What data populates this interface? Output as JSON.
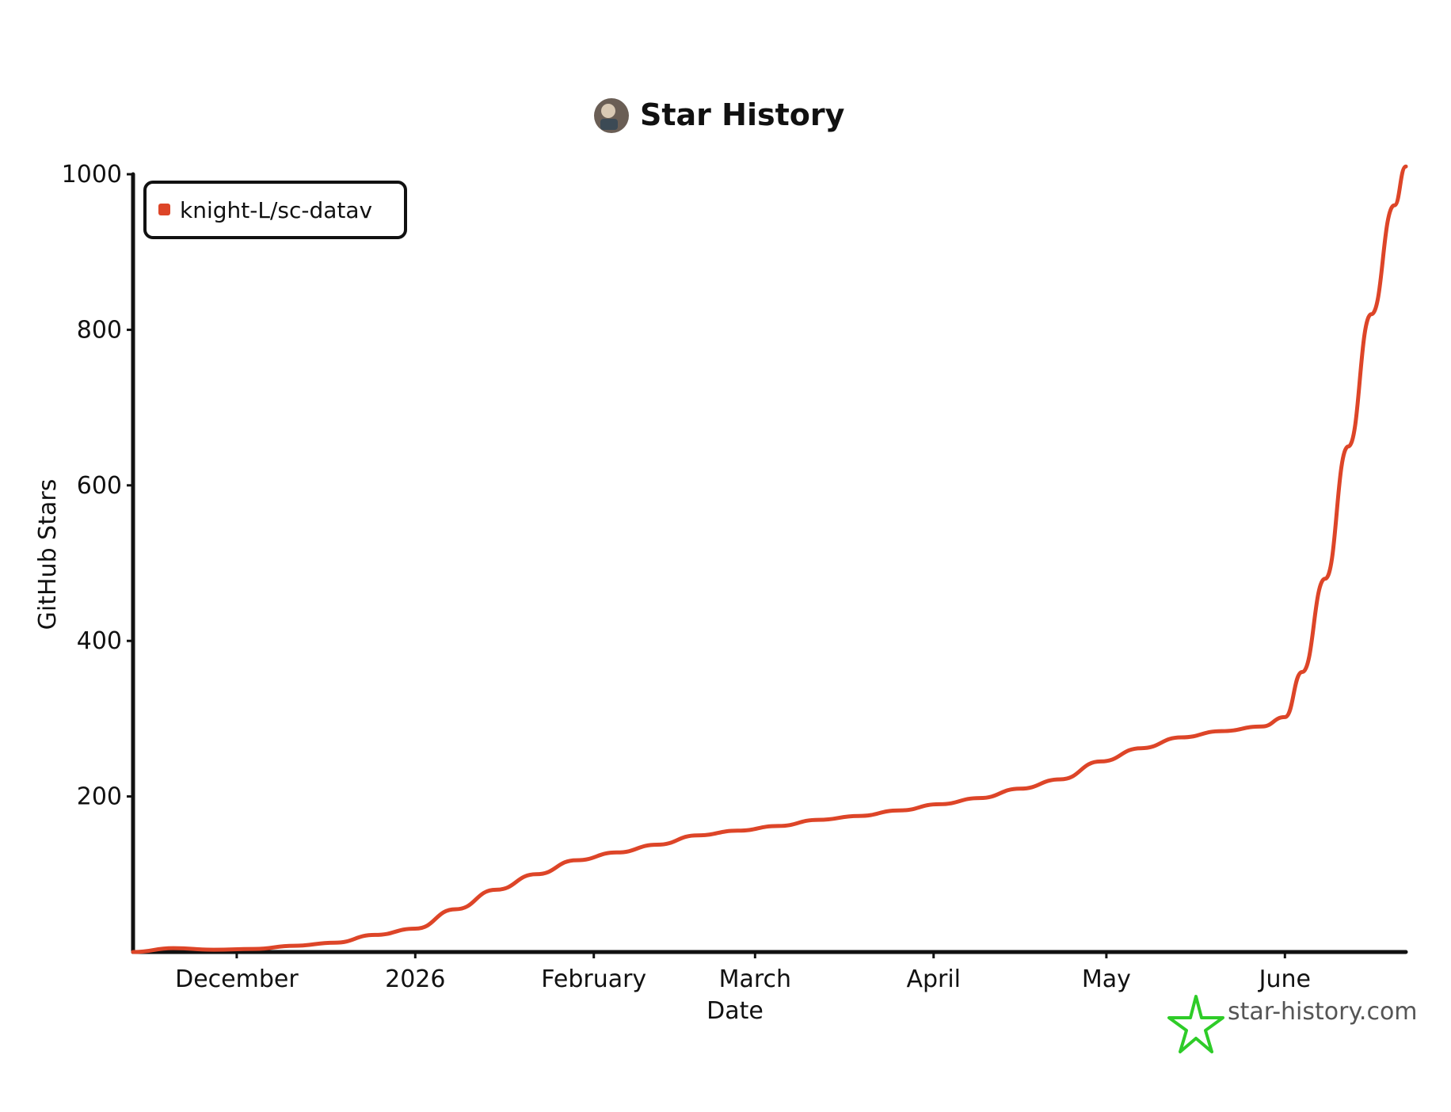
{
  "chart_data": {
    "type": "line",
    "title": "Star History",
    "xlabel": "Date",
    "ylabel": "GitHub Stars",
    "ylim": [
      0,
      1000
    ],
    "yticks": [
      200,
      400,
      600,
      800,
      1000
    ],
    "xlim": [
      "2025-11-13",
      "2026-06-22"
    ],
    "xticks": [
      {
        "label": "December",
        "date": "2025-12-01"
      },
      {
        "label": "2026",
        "date": "2026-01-01"
      },
      {
        "label": "February",
        "date": "2026-02-01"
      },
      {
        "label": "March",
        "date": "2026-03-01"
      },
      {
        "label": "April",
        "date": "2026-04-01"
      },
      {
        "label": "May",
        "date": "2026-05-01"
      },
      {
        "label": "June",
        "date": "2026-06-01"
      }
    ],
    "legend_position": "top-left",
    "grid": false,
    "series": [
      {
        "name": "knight-L/sc-datav",
        "color": "#dd4528",
        "points": [
          [
            "2025-11-13",
            0
          ],
          [
            "2025-11-20",
            5
          ],
          [
            "2025-11-27",
            3
          ],
          [
            "2025-12-04",
            4
          ],
          [
            "2025-12-11",
            8
          ],
          [
            "2025-12-18",
            12
          ],
          [
            "2025-12-25",
            22
          ],
          [
            "2026-01-01",
            30
          ],
          [
            "2026-01-08",
            55
          ],
          [
            "2026-01-15",
            80
          ],
          [
            "2026-01-22",
            100
          ],
          [
            "2026-01-29",
            118
          ],
          [
            "2026-02-05",
            128
          ],
          [
            "2026-02-12",
            138
          ],
          [
            "2026-02-19",
            150
          ],
          [
            "2026-02-26",
            156
          ],
          [
            "2026-03-05",
            162
          ],
          [
            "2026-03-12",
            170
          ],
          [
            "2026-03-19",
            175
          ],
          [
            "2026-03-26",
            182
          ],
          [
            "2026-04-02",
            190
          ],
          [
            "2026-04-09",
            198
          ],
          [
            "2026-04-16",
            210
          ],
          [
            "2026-04-23",
            222
          ],
          [
            "2026-04-30",
            245
          ],
          [
            "2026-05-07",
            262
          ],
          [
            "2026-05-14",
            276
          ],
          [
            "2026-05-21",
            284
          ],
          [
            "2026-05-28",
            290
          ],
          [
            "2026-06-01",
            302
          ],
          [
            "2026-06-04",
            360
          ],
          [
            "2026-06-08",
            480
          ],
          [
            "2026-06-12",
            650
          ],
          [
            "2026-06-16",
            820
          ],
          [
            "2026-06-20",
            960
          ],
          [
            "2026-06-22",
            1010
          ]
        ]
      }
    ]
  },
  "branding": {
    "site": "star-history.com",
    "logo_color": "#2ecc28",
    "icon": "star-icon",
    "avatar": "avatar-icon"
  }
}
